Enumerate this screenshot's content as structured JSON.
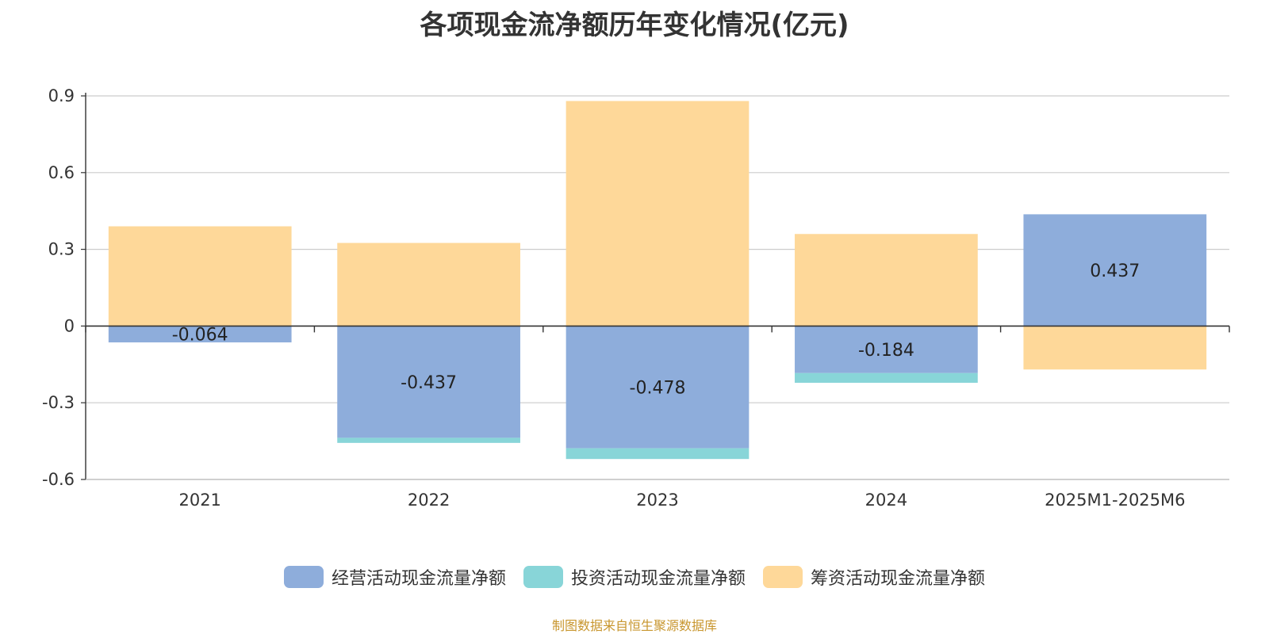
{
  "chart_data": {
    "type": "bar",
    "stacked": true,
    "title": "各项现金流净额历年变化情况(亿元)",
    "xlabel": "",
    "ylabel": "",
    "categories": [
      "2021",
      "2022",
      "2023",
      "2024",
      "2025M1-2025M6"
    ],
    "ylim": [
      -0.6,
      0.9
    ],
    "yticks": [
      0.9,
      0.6,
      0.3,
      0,
      -0.3,
      -0.6
    ],
    "ytick_labels": [
      "0.9",
      "0.6",
      "0.3",
      "0",
      "-0.3",
      "-0.6"
    ],
    "grid": true,
    "legend_position": "bottom",
    "series": [
      {
        "name": "经营活动现金流量净额",
        "color": "#8eaddb",
        "values": [
          -0.064,
          -0.437,
          -0.478,
          -0.184,
          0.437
        ],
        "labels": [
          "-0.064",
          "-0.437",
          "-0.478",
          "-0.184",
          "0.437"
        ]
      },
      {
        "name": "投资活动现金流量净额",
        "color": "#88d5d8",
        "values": [
          0,
          -0.02,
          -0.042,
          -0.038,
          0
        ]
      },
      {
        "name": "筹资活动现金流量净额",
        "color": "#fed899",
        "values": [
          0.39,
          0.325,
          0.88,
          0.36,
          -0.17
        ]
      }
    ]
  },
  "source_note": "制图数据来自恒生聚源数据库"
}
